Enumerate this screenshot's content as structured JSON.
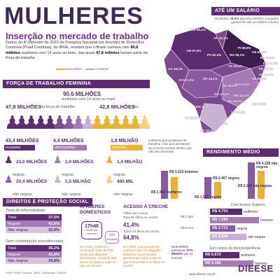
{
  "header": {
    "title": "MULHERES",
    "subtitle": "Inserção no mercado de trabalho",
    "intro_a": "Dados do 4º trimestre de 2023 da Pesquisa Nacional por Amostra de Domicílios Contínua (Pnad Contínua), do IBGE, revelam que o Brasil contava com ",
    "intro_b": "90,6 milhões",
    "intro_c": " mulheres com 14 anos ou mais, das quais ",
    "intro_d": "47,8 milhões",
    "intro_e": " faziam parte da força de trabalho",
    "legend_women": "MULHERES",
    "legend_men": "HOMENS"
  },
  "map": {
    "section_title": "ATÉ UM SALÁRIO MÍNIMO",
    "note_a": "No Brasil, ",
    "note_b": "39,9%",
    "note_c": " das MULHERES ocupadas ganhavam até um salário mínimo",
    "states": [
      {
        "uf": "RR",
        "val": "49,3%"
      },
      {
        "uf": "AP",
        "val": "43,1%"
      },
      {
        "uf": "AM",
        "val": "57,0%"
      },
      {
        "uf": "PA",
        "val": "62,3%"
      },
      {
        "uf": "MA",
        "val": "66,1%"
      },
      {
        "uf": "PI",
        "val": "65,5%"
      },
      {
        "uf": "CE",
        "val": "65,5%"
      },
      {
        "uf": "RN",
        "val": "64,4%"
      },
      {
        "uf": "PB",
        "val": "60,3%"
      },
      {
        "uf": "PE",
        "val": "64,1%"
      },
      {
        "uf": "AL",
        "val": "62,1%"
      },
      {
        "uf": "SE",
        "val": "65,5%"
      },
      {
        "uf": "AC",
        "val": "49,3%"
      },
      {
        "uf": "TO",
        "val": "45,5%"
      },
      {
        "uf": "BA",
        "val": "57,0%"
      },
      {
        "uf": "RO",
        "val": "57,0%"
      },
      {
        "uf": "MT",
        "val": "33,2%"
      },
      {
        "uf": "DF",
        "val": "28,3%"
      },
      {
        "uf": "GO",
        "val": "42,4%"
      },
      {
        "uf": "MG",
        "val": "43,2%"
      },
      {
        "uf": "ES",
        "val": "40,5%"
      },
      {
        "uf": "MS",
        "val": "32,9%"
      },
      {
        "uf": "SP",
        "val": "24,8%"
      },
      {
        "uf": "RJ",
        "val": "33,5%"
      },
      {
        "uf": "PR",
        "val": "26,5%"
      },
      {
        "uf": "SC",
        "val": "17,7%"
      },
      {
        "uf": "RS",
        "val": "28,4%"
      }
    ]
  },
  "labor": {
    "section_title": "FORÇA DE TRABALHO FEMININA",
    "total_value": "90,6 MILHÕES",
    "total_label": "mulheres com 14 anos ou mais",
    "in_value": "47,8 MILHÕES",
    "in_label": "na força de trabalho",
    "out_value": "42,8 MILHÕES",
    "out_label": "fora",
    "occupied_value": "43,4 MILHÕES",
    "occupied_label": "ocupadas",
    "unemployed_value": "4,4 MILHÕES",
    "unemployed_label": "desocupadas",
    "potential_value": "1,9 MILHÃO",
    "potential_label": "potencial",
    "potential_note": "mulheres que gostariam de trabalhar, mas que desistiram de procurar porque acham que não vão encontrar",
    "occ_black_value": "23,0 MILHÕES",
    "occ_black_label": "negras",
    "occ_nonblack_value": "20,4 MILHÕES",
    "occ_nonblack_label": "não negras",
    "un_black_value": "2,9 MILHÕES",
    "un_black_label": "negras",
    "un_nonblack_value": "1,5 MILHÃO",
    "un_nonblack_label": "não negras",
    "pot_black_value": "1,4 MILHÃO",
    "pot_black_label": "negras",
    "pot_nonblack_value": "485 MIL",
    "pot_nonblack_label": "não negras"
  },
  "income": {
    "section_title": "RENDIMENTO MÉDIO MENSAL",
    "items": [
      {
        "value": "R$ 3.233",
        "label": "homens"
      },
      {
        "value": "R$ 2.562",
        "label": "mulheres"
      },
      {
        "value": "R$ 2.467",
        "label": "negros"
      },
      {
        "value": "R$ 1.957",
        "label": "negras"
      },
      {
        "value": "R$ 4.228",
        "label": "não negros"
      },
      {
        "value": "R$ 3.242",
        "label": "não negras"
      }
    ],
    "higher_ed_title": "Com Ensino Superior",
    "higher_ed": [
      {
        "value": "R$ 4.701",
        "label": "mulheres"
      },
      {
        "value": "R$ 7.283",
        "label": "homens"
      },
      {
        "value": "R$ 3.721",
        "label": "negras"
      },
      {
        "value": "R$ 5.505",
        "label": "não negras"
      }
    ],
    "directors_title": "Em cargos de direção/gerência",
    "directors_note_a": "MULHERES ganhavam ",
    "directors_note_b": "27% MENOS",
    "directors_note_c": " que os homens",
    "directors": [
      {
        "value": "R$ 6.672",
        "label": "mulheres"
      },
      {
        "value": "R$ 9.185",
        "label": "homens"
      }
    ],
    "left_side_higher": "R$ 8.673",
    "left_side_higher2": "R$ 7.283"
  },
  "rights": {
    "section_title": "DIREITOS E PROTEÇÃO SOCIAL",
    "informality_title": "Taxa de informalidade",
    "informality": [
      {
        "label": "Total",
        "value": "37,5%"
      },
      {
        "label": "Negras",
        "value": "41,6%"
      },
      {
        "label": "Não negras",
        "value": "32,6%"
      }
    ],
    "pension_title": "Sem contribuição previdenciária",
    "pension": [
      {
        "label": "Total",
        "value": "36,2%"
      },
      {
        "label": "Negras",
        "value": "41,0%"
      },
      {
        "label": "Não negras",
        "value": "30,8%"
      }
    ],
    "source": "Fonte: Pnad Contínua - IBGE. Elaboração: DIEESE"
  },
  "domestic": {
    "title_a": "AFAZERES",
    "title_b": "DOMÉSTICOS",
    "hours_women": "17h48",
    "hours_women_label": "horas por semana",
    "hours_men": "11h",
    "hours_men_label": "semanais",
    "note": "Em 2022, mulheres dedicaram mais de 925 horas aos afazeres domésticos, cerca de 354 horas (15 dias) a mais do que os homens"
  },
  "daycare": {
    "title": "ACESSO À CRECHE",
    "all_children_label": "Filhos até 3 anos",
    "all_children_sub": "Total de filhos na creche",
    "all_value": "41,4%",
    "all_label2": "Todos os filhos na creche",
    "all_value2": "64,8%",
    "note": "Em 2022, a proporção de mulheres que conseguiam trabalhar era 23 pontos percentuais maior entre as que tinham todos os filhos na creche"
  },
  "footer": {
    "brand": "DIEESE",
    "url": "www.dieese.org.br"
  },
  "colors": {
    "purple": "#5b2c6f",
    "gold": "#e8b234",
    "lavender": "#a57bb5"
  }
}
